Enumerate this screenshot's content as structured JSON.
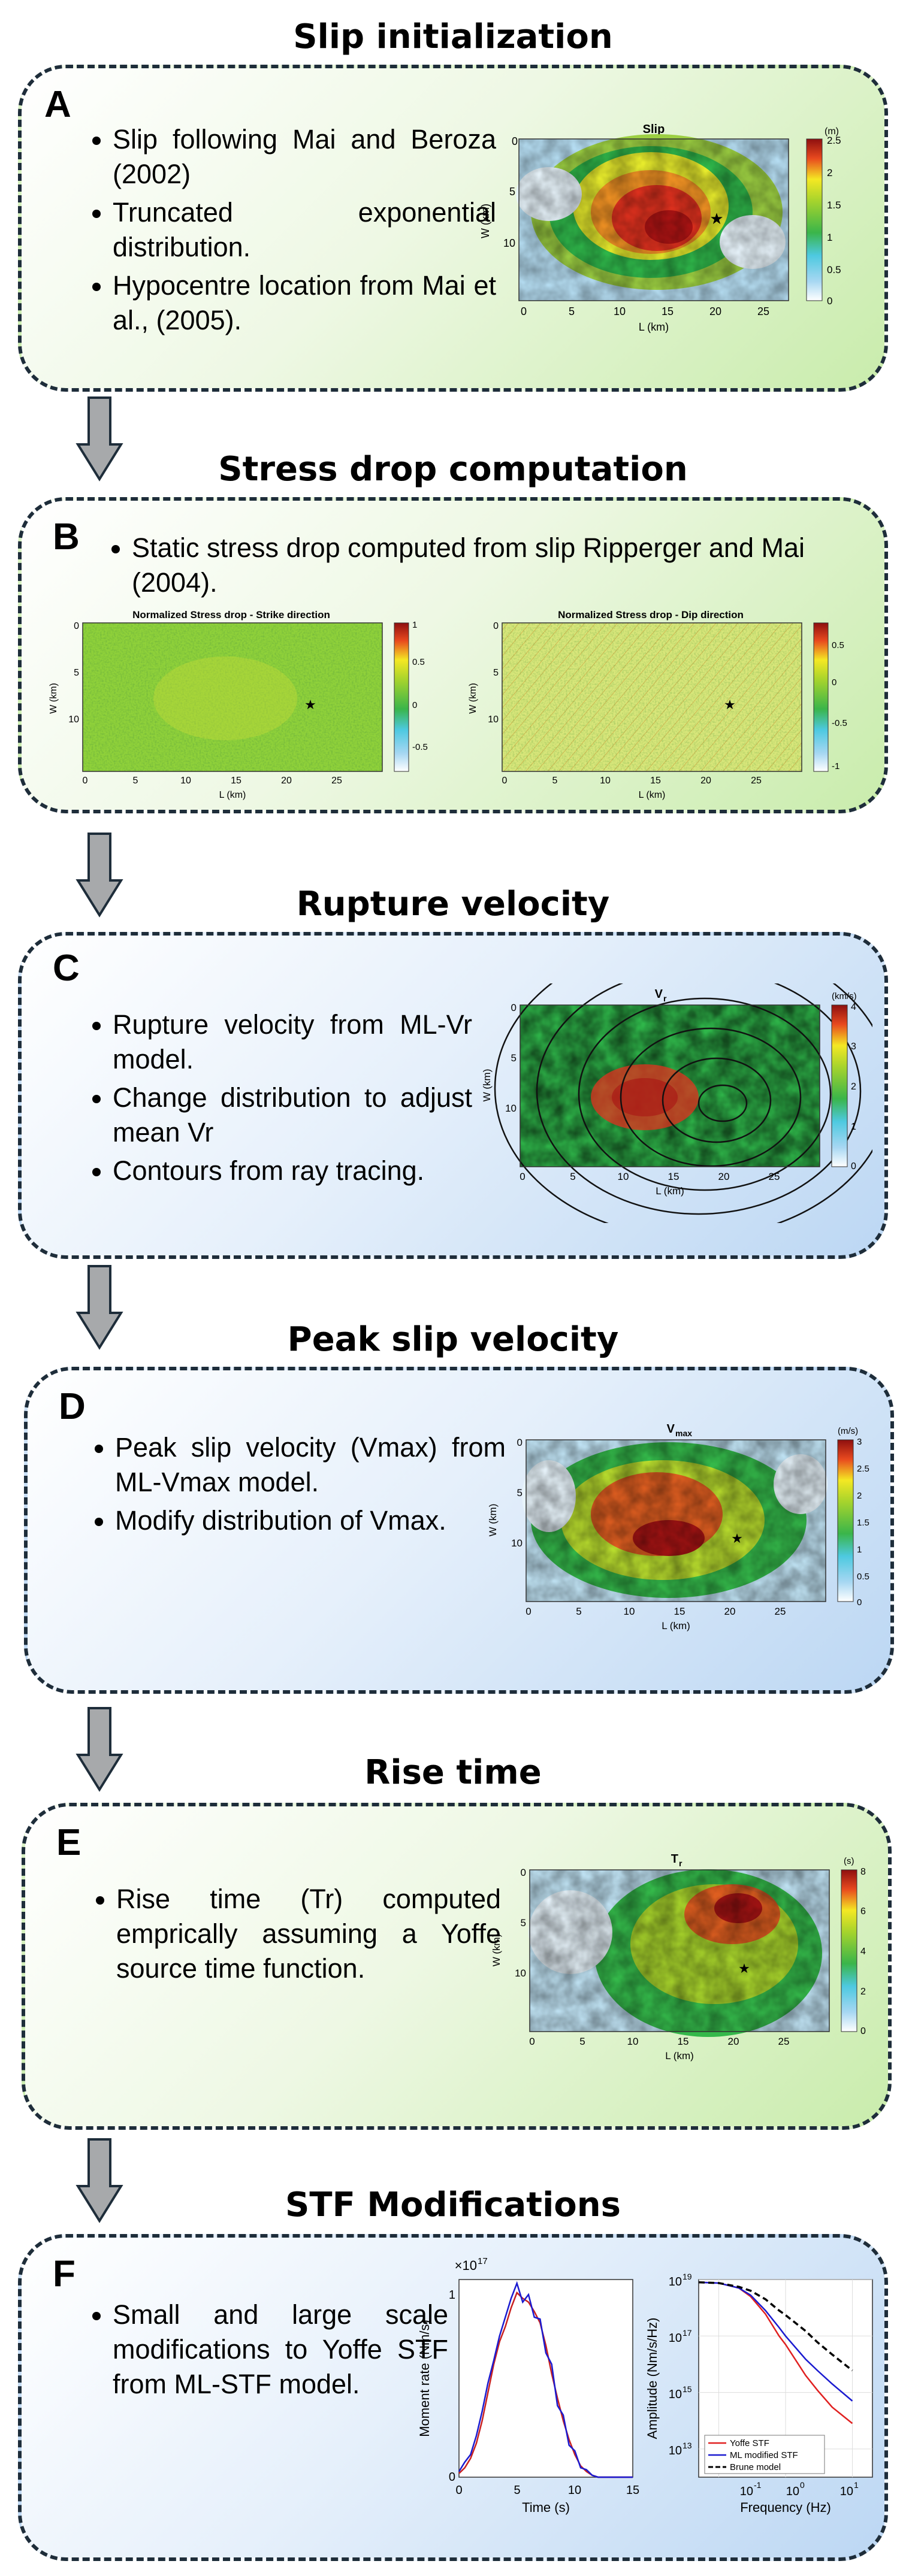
{
  "sections": [
    {
      "title": "Slip initialization",
      "letter": "A",
      "bullets": [
        "Slip following Mai and Beroza (2002)",
        "Truncated exponential distribution.",
        "Hypocentre location from Mai et al., (2005)."
      ],
      "map": {
        "title": "Slip",
        "xlabel": "L (km)",
        "ylabel": "W (km)",
        "cb_unit": "(m)",
        "xticks": [
          "0",
          "5",
          "10",
          "15",
          "20",
          "25"
        ],
        "yticks": [
          "0",
          "5",
          "10"
        ],
        "cb_ticks": [
          "2.5",
          "2",
          "1.5",
          "1",
          "0.5",
          "0"
        ],
        "colormap": "jet"
      }
    },
    {
      "title": "Stress drop computation",
      "letter": "B",
      "bullets": [
        "Static stress drop computed from slip Ripperger and Mai (2004)."
      ],
      "maps": [
        {
          "title": "Normalized Stress drop - Strike direction",
          "xlabel": "L (km)",
          "ylabel": "W (km)",
          "xticks": [
            "0",
            "5",
            "10",
            "15",
            "20",
            "25"
          ],
          "yticks": [
            "0",
            "5",
            "10"
          ],
          "cb_ticks": [
            "1",
            "0.5",
            "0",
            "-0.5"
          ]
        },
        {
          "title": "Normalized Stress drop - Dip direction",
          "xlabel": "L (km)",
          "ylabel": "W (km)",
          "xticks": [
            "0",
            "5",
            "10",
            "15",
            "20",
            "25"
          ],
          "yticks": [
            "0",
            "5",
            "10"
          ],
          "cb_ticks": [
            "0.5",
            "0",
            "-0.5",
            "-1"
          ]
        }
      ]
    },
    {
      "title": "Rupture velocity",
      "letter": "C",
      "bullets": [
        "Rupture velocity from ML-Vr model.",
        "Change distribution to adjust mean Vr",
        "Contours from ray tracing."
      ],
      "map": {
        "title_main": "V",
        "title_sub": "r",
        "xlabel": "L (km)",
        "ylabel": "W (km)",
        "cb_unit": "(km/s)",
        "xticks": [
          "0",
          "5",
          "10",
          "15",
          "20",
          "25"
        ],
        "yticks": [
          "0",
          "5",
          "10"
        ],
        "cb_ticks": [
          "4",
          "3",
          "2",
          "1",
          "0"
        ]
      }
    },
    {
      "title": "Peak slip velocity",
      "letter": "D",
      "bullets": [
        "Peak slip velocity (Vmax) from ML-Vmax model.",
        "Modify distribution of Vmax."
      ],
      "map": {
        "title_main": "V",
        "title_sub": "max",
        "xlabel": "L (km)",
        "ylabel": "W (km)",
        "cb_unit": "(m/s)",
        "xticks": [
          "0",
          "5",
          "10",
          "15",
          "20",
          "25"
        ],
        "yticks": [
          "0",
          "5",
          "10"
        ],
        "cb_ticks": [
          "3",
          "2.5",
          "2",
          "1.5",
          "1",
          "0.5",
          "0"
        ]
      }
    },
    {
      "title": "Rise time",
      "letter": "E",
      "bullets": [
        "Rise time (Tr) computed emprically assuming a Yoffe source time function."
      ],
      "map": {
        "title_main": "T",
        "title_sub": "r",
        "xlabel": "L (km)",
        "ylabel": "W (km)",
        "cb_unit": "(s)",
        "xticks": [
          "0",
          "5",
          "10",
          "15",
          "20",
          "25"
        ],
        "yticks": [
          "0",
          "5",
          "10"
        ],
        "cb_ticks": [
          "8",
          "6",
          "4",
          "2",
          "0"
        ]
      }
    },
    {
      "title": "STF Modifications",
      "letter": "F",
      "bullets": [
        "Small and large scale modifications to Yoffe STF from ML-STF model."
      ],
      "time_plot": {
        "ylabel": "Moment rate (Nm/s)",
        "xlabel": "Time (s)",
        "scale": "×10",
        "scale_exp": "17",
        "xticks": [
          "0",
          "5",
          "10",
          "15"
        ],
        "yticks": [
          "0",
          "1"
        ]
      },
      "spec_plot": {
        "ylabel": "Amplitude (Nm/s/Hz)",
        "xlabel": "Frequency (Hz)",
        "yticks_base": [
          "10",
          "10",
          "10",
          "10"
        ],
        "yticks_exp": [
          "19",
          "17",
          "15",
          "13"
        ],
        "xticks_base": [
          "10",
          "10",
          "10"
        ],
        "xticks_exp": [
          "-1",
          "0",
          "1"
        ],
        "legend": [
          "Yoffe STF",
          "ML modified STF",
          "Brune model"
        ]
      }
    }
  ],
  "chart_data": [
    {
      "type": "line",
      "title": "",
      "xlabel": "Time (s)",
      "ylabel": "Moment rate (Nm/s)",
      "xlim": [
        0,
        15
      ],
      "ylim": [
        0,
        1.05
      ],
      "y_scale_factor": "1e17",
      "series": [
        {
          "color": "#c82020",
          "x": [
            0,
            0.5,
            1,
            1.5,
            2,
            2.5,
            3,
            3.5,
            4,
            4.5,
            5,
            5.5,
            6,
            6.5,
            7,
            7.5,
            8,
            8.5,
            9,
            9.5,
            10,
            10.5,
            11,
            11.5,
            12,
            15
          ],
          "y": [
            0.02,
            0.05,
            0.1,
            0.18,
            0.3,
            0.45,
            0.6,
            0.72,
            0.8,
            0.9,
            0.98,
            0.95,
            0.93,
            0.88,
            0.82,
            0.7,
            0.55,
            0.42,
            0.3,
            0.2,
            0.12,
            0.06,
            0.03,
            0.01,
            0,
            0
          ]
        },
        {
          "color": "#1a1ad0",
          "x": [
            0,
            0.5,
            1,
            1.5,
            2,
            2.5,
            3,
            3.5,
            4,
            4.5,
            5,
            5.5,
            6,
            6.5,
            7,
            7.5,
            8,
            8.5,
            9,
            9.5,
            10,
            10.5,
            11,
            11.5,
            12,
            15
          ],
          "y": [
            0.03,
            0.08,
            0.12,
            0.22,
            0.35,
            0.5,
            0.62,
            0.75,
            0.85,
            0.95,
            1.03,
            0.93,
            0.97,
            0.85,
            0.84,
            0.66,
            0.6,
            0.38,
            0.33,
            0.17,
            0.14,
            0.05,
            0.04,
            0.01,
            0,
            0
          ]
        }
      ]
    },
    {
      "type": "line",
      "title": "",
      "xlabel": "Frequency (Hz)",
      "ylabel": "Amplitude (Nm/s/Hz)",
      "xscale": "log",
      "yscale": "log",
      "xlim": [
        0.05,
        20
      ],
      "ylim": [
        1000000000000.0,
        1e+19
      ],
      "legend_position": "bottom-left",
      "series": [
        {
          "name": "Yoffe STF",
          "color": "#e02020",
          "style": "solid",
          "x": [
            0.05,
            0.1,
            0.2,
            0.3,
            0.5,
            0.8,
            1,
            2,
            3,
            5,
            10
          ],
          "y": [
            8e+18,
            7.5e+18,
            5e+18,
            2.5e+18,
            6e+17,
            1e+17,
            5e+16,
            4000000000000000.0,
            1200000000000000.0,
            300000000000000.0,
            80000000000000.0
          ]
        },
        {
          "name": "ML modified STF",
          "color": "#1a1ad0",
          "style": "solid",
          "x": [
            0.05,
            0.1,
            0.2,
            0.3,
            0.5,
            0.8,
            1,
            2,
            3,
            5,
            10
          ],
          "y": [
            8e+18,
            7.5e+18,
            5e+18,
            2.8e+18,
            8e+17,
            2e+17,
            1e+17,
            1.5e+16,
            6000000000000000.0,
            2000000000000000.0,
            500000000000000.0
          ]
        },
        {
          "name": "Brune model",
          "color": "#000000",
          "style": "dashed",
          "x": [
            0.05,
            0.1,
            0.2,
            0.3,
            0.5,
            0.8,
            1,
            2,
            3,
            5,
            10
          ],
          "y": [
            8e+18,
            7.5e+18,
            5.5e+18,
            4e+18,
            2e+18,
            8e+17,
            5.5e+17,
            1.5e+17,
            6e+16,
            2.2e+16,
            6000000000000000.0
          ]
        }
      ]
    }
  ]
}
